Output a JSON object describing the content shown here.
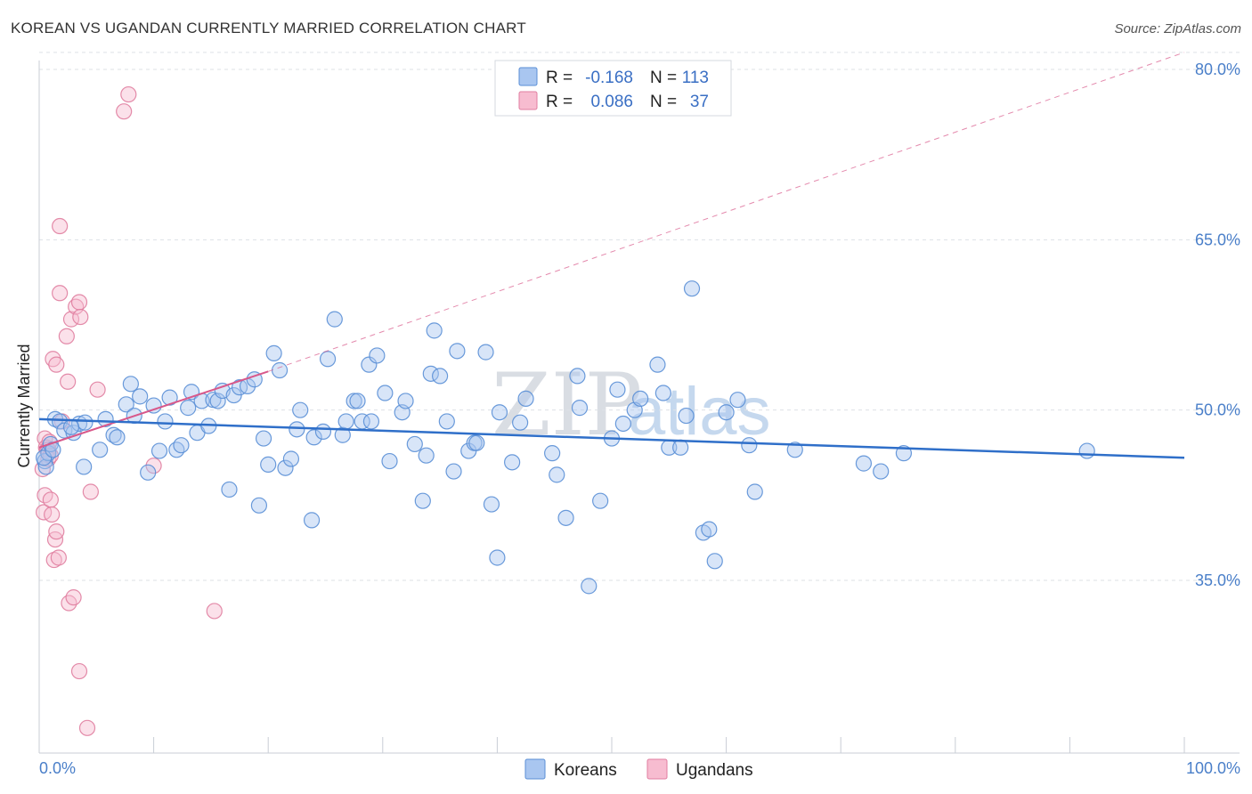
{
  "title": "KOREAN VS UGANDAN CURRENTLY MARRIED CORRELATION CHART",
  "source": "Source: ZipAtlas.com",
  "watermark": {
    "zip": "ZIP",
    "atlas": "atlas"
  },
  "colors": {
    "koreans_fill": "#a9c6f0",
    "koreans_stroke": "#5a8fd6",
    "koreans_line": "#2f6fc9",
    "ugandans_fill": "#f7bcd0",
    "ugandans_stroke": "#e07ea0",
    "ugandans_line": "#d8588a",
    "tick_text": "#4a7fc9",
    "grid": "#dde1e6"
  },
  "legend_top": {
    "rows": [
      {
        "r_label": "R =",
        "r_value": "-0.168",
        "n_label": "N =",
        "n_value": "113"
      },
      {
        "r_label": "R =",
        "r_value": "0.086",
        "n_label": "N =",
        "n_value": "37"
      }
    ]
  },
  "chart_data": {
    "type": "scatter",
    "title": "KOREAN VS UGANDAN CURRENTLY MARRIED CORRELATION CHART",
    "xlabel": "",
    "ylabel": "Currently Married",
    "xlim": [
      0,
      100
    ],
    "ylim": [
      20,
      82
    ],
    "x_tick_labels": [
      "0.0%",
      "100.0%"
    ],
    "y_ticks": [
      35,
      50,
      65,
      80
    ],
    "y_tick_labels": [
      "35.0%",
      "50.0%",
      "65.0%",
      "80.0%"
    ],
    "grid": true,
    "legend": [
      "Koreans",
      "Ugandans"
    ],
    "series": [
      {
        "name": "Koreans",
        "r": -0.168,
        "n": 113,
        "trend": {
          "x": [
            0,
            100
          ],
          "y": [
            49.2,
            45.8
          ]
        },
        "points": [
          [
            0.5,
            45.5
          ],
          [
            0.6,
            45.0
          ],
          [
            0.8,
            46.2
          ],
          [
            1.0,
            47.0
          ],
          [
            1.4,
            49.2
          ],
          [
            1.8,
            49.0
          ],
          [
            2.2,
            48.2
          ],
          [
            3.0,
            48.0
          ],
          [
            3.5,
            48.8
          ],
          [
            4.0,
            48.9
          ],
          [
            3.9,
            45.0
          ],
          [
            5.3,
            46.5
          ],
          [
            5.8,
            49.2
          ],
          [
            6.5,
            47.8
          ],
          [
            6.8,
            47.6
          ],
          [
            7.6,
            50.5
          ],
          [
            8.0,
            52.3
          ],
          [
            8.3,
            49.5
          ],
          [
            8.8,
            51.2
          ],
          [
            9.5,
            44.5
          ],
          [
            10.0,
            50.4
          ],
          [
            10.5,
            46.4
          ],
          [
            11.0,
            49.0
          ],
          [
            11.4,
            51.1
          ],
          [
            12.0,
            46.5
          ],
          [
            12.4,
            46.9
          ],
          [
            13.0,
            50.2
          ],
          [
            13.3,
            51.6
          ],
          [
            13.8,
            48.0
          ],
          [
            14.2,
            50.8
          ],
          [
            14.8,
            48.6
          ],
          [
            15.2,
            50.9
          ],
          [
            15.6,
            50.8
          ],
          [
            16.0,
            51.7
          ],
          [
            16.6,
            43.0
          ],
          [
            17.0,
            51.3
          ],
          [
            17.5,
            52.0
          ],
          [
            18.2,
            52.1
          ],
          [
            18.8,
            52.7
          ],
          [
            19.2,
            41.6
          ],
          [
            19.6,
            47.5
          ],
          [
            20.0,
            45.2
          ],
          [
            20.5,
            55.0
          ],
          [
            21.0,
            53.5
          ],
          [
            21.5,
            44.9
          ],
          [
            22.0,
            45.7
          ],
          [
            22.8,
            50.0
          ],
          [
            22.5,
            48.3
          ],
          [
            24.0,
            47.6
          ],
          [
            23.8,
            40.3
          ],
          [
            24.8,
            48.1
          ],
          [
            25.2,
            54.5
          ],
          [
            25.8,
            58.0
          ],
          [
            26.5,
            47.8
          ],
          [
            26.8,
            49.0
          ],
          [
            27.5,
            50.8
          ],
          [
            27.8,
            50.8
          ],
          [
            28.2,
            49.0
          ],
          [
            28.8,
            54.0
          ],
          [
            29.0,
            49.0
          ],
          [
            29.5,
            54.8
          ],
          [
            30.2,
            51.5
          ],
          [
            30.6,
            45.5
          ],
          [
            31.7,
            49.8
          ],
          [
            32.0,
            50.8
          ],
          [
            32.8,
            47.0
          ],
          [
            33.5,
            42.0
          ],
          [
            33.8,
            46.0
          ],
          [
            34.2,
            53.2
          ],
          [
            34.5,
            57.0
          ],
          [
            35.0,
            53.0
          ],
          [
            35.6,
            49.0
          ],
          [
            36.2,
            44.6
          ],
          [
            36.5,
            55.2
          ],
          [
            37.5,
            46.4
          ],
          [
            38.0,
            47.1
          ],
          [
            38.2,
            47.1
          ],
          [
            39.0,
            55.1
          ],
          [
            39.5,
            41.7
          ],
          [
            40.0,
            37.0
          ],
          [
            40.2,
            49.8
          ],
          [
            41.3,
            45.4
          ],
          [
            42.0,
            48.9
          ],
          [
            42.5,
            51.0
          ],
          [
            44.8,
            46.2
          ],
          [
            45.2,
            44.3
          ],
          [
            46.0,
            40.5
          ],
          [
            47.0,
            53.0
          ],
          [
            47.2,
            50.2
          ],
          [
            48.0,
            34.5
          ],
          [
            49.0,
            42.0
          ],
          [
            50.0,
            47.5
          ],
          [
            50.5,
            51.8
          ],
          [
            51.0,
            48.8
          ],
          [
            52.0,
            50.0
          ],
          [
            52.5,
            51.0
          ],
          [
            54.0,
            54.0
          ],
          [
            54.5,
            51.5
          ],
          [
            55.0,
            46.7
          ],
          [
            56.0,
            46.7
          ],
          [
            56.5,
            49.5
          ],
          [
            57.0,
            60.7
          ],
          [
            58.0,
            39.2
          ],
          [
            58.5,
            39.5
          ],
          [
            59.0,
            36.7
          ],
          [
            60.0,
            49.8
          ],
          [
            61.0,
            50.9
          ],
          [
            62.0,
            46.9
          ],
          [
            62.5,
            42.8
          ],
          [
            66.0,
            46.5
          ],
          [
            72.0,
            45.3
          ],
          [
            73.5,
            44.6
          ],
          [
            75.5,
            46.2
          ],
          [
            91.5,
            46.4
          ],
          [
            0.4,
            45.8
          ],
          [
            1.2,
            46.5
          ],
          [
            2.8,
            48.5
          ]
        ]
      },
      {
        "name": "Ugandans",
        "r": 0.086,
        "n": 37,
        "trend": {
          "x": [
            0,
            20
          ],
          "y": [
            46.7,
            53.4
          ]
        },
        "trend_extension": {
          "x": [
            20,
            100
          ],
          "y": [
            53.4,
            81.5
          ]
        },
        "points": [
          [
            0.3,
            44.8
          ],
          [
            0.4,
            41.0
          ],
          [
            0.5,
            42.5
          ],
          [
            0.5,
            47.5
          ],
          [
            0.6,
            46.7
          ],
          [
            0.7,
            46.5
          ],
          [
            0.8,
            46.5
          ],
          [
            0.8,
            45.7
          ],
          [
            1.0,
            42.1
          ],
          [
            1.1,
            40.8
          ],
          [
            1.3,
            36.8
          ],
          [
            1.4,
            38.6
          ],
          [
            1.5,
            39.3
          ],
          [
            1.7,
            37.0
          ],
          [
            1.2,
            54.5
          ],
          [
            1.5,
            54.0
          ],
          [
            1.8,
            66.2
          ],
          [
            1.8,
            60.3
          ],
          [
            2.0,
            49.0
          ],
          [
            2.5,
            52.5
          ],
          [
            2.4,
            56.5
          ],
          [
            2.8,
            58.0
          ],
          [
            3.2,
            59.1
          ],
          [
            3.5,
            59.5
          ],
          [
            3.6,
            58.2
          ],
          [
            2.6,
            33.0
          ],
          [
            3.0,
            33.5
          ],
          [
            3.5,
            27.0
          ],
          [
            4.2,
            22.0
          ],
          [
            4.5,
            42.8
          ],
          [
            5.1,
            51.8
          ],
          [
            7.4,
            76.3
          ],
          [
            7.8,
            77.8
          ],
          [
            10.0,
            45.1
          ],
          [
            15.3,
            32.3
          ],
          [
            0.9,
            47.2
          ],
          [
            1.0,
            46.0
          ]
        ]
      }
    ]
  }
}
